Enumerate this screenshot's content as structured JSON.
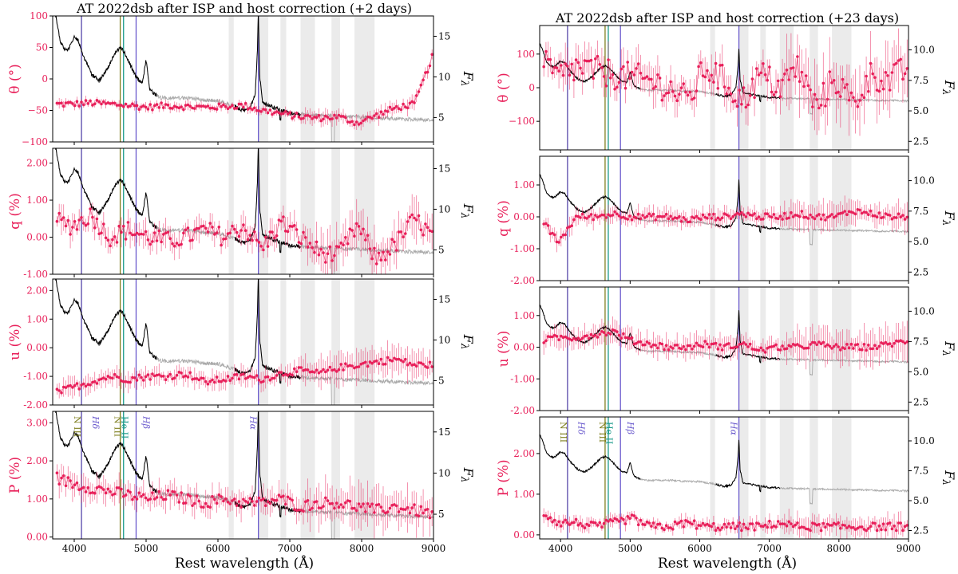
{
  "chart_data": {
    "type": "line",
    "x_label": "Rest wavelength (Å)",
    "x_range": [
      3700,
      9000
    ],
    "x_ticks": [
      4000,
      5000,
      6000,
      7000,
      8000,
      9000
    ],
    "right_axis_label": "F_λ",
    "right_axis_symbol": "F",
    "right_axis_subscript": "λ",
    "colors": {
      "polarization": "#e8205a",
      "flux": "#000000",
      "flux_uncertain": "#aaaaaa",
      "band": "#ebebeb"
    },
    "shaded_bands": [
      [
        6150,
        6220
      ],
      [
        6560,
        6700
      ],
      [
        6870,
        6950
      ],
      [
        7150,
        7350
      ],
      [
        7580,
        7700
      ],
      [
        7900,
        8180
      ]
    ],
    "shaded_bands_late": [
      [
        6150,
        6220
      ],
      [
        6560,
        6700
      ],
      [
        6870,
        6950
      ],
      [
        7150,
        7350
      ],
      [
        7580,
        7700
      ],
      [
        7900,
        8180
      ]
    ],
    "lines": [
      {
        "name": "N III",
        "wavelength": 4100,
        "color": "#808020"
      },
      {
        "name": "Hδ",
        "wavelength": 4101,
        "color": "#6a5acd"
      },
      {
        "name": "N III",
        "wavelength": 4640,
        "color": "#808020"
      },
      {
        "name": "He II",
        "wavelength": 4686,
        "color": "#1a9a8a"
      },
      {
        "name": "Hβ",
        "wavelength": 4861,
        "color": "#6a5acd"
      },
      {
        "name": "Hα",
        "wavelength": 6563,
        "color": "#6a5acd"
      }
    ],
    "line_labels": [
      {
        "text": "N III",
        "wavelength": 4000,
        "color": "#808020"
      },
      {
        "text": "Hδ",
        "wavelength": 4255,
        "color": "#6a5acd"
      },
      {
        "text": "N III",
        "wavelength": 4560,
        "color": "#808020"
      },
      {
        "text": "He II",
        "wavelength": 4660,
        "color": "#1a9a8a"
      },
      {
        "text": "Hβ",
        "wavelength": 4960,
        "color": "#6a5acd"
      },
      {
        "text": "Hα",
        "wavelength": 6450,
        "color": "#6a5acd"
      }
    ],
    "flux_profile": {
      "x": [
        3700,
        3750,
        3800,
        3850,
        3900,
        3950,
        4000,
        4050,
        4100,
        4150,
        4200,
        4250,
        4300,
        4350,
        4400,
        4450,
        4500,
        4550,
        4600,
        4650,
        4700,
        4750,
        4800,
        4850,
        4900,
        4950,
        5000,
        5050,
        5100,
        5150,
        5200,
        5400,
        5600,
        5800,
        6000,
        6200,
        6350,
        6450,
        6520,
        6550,
        6563,
        6580,
        6620,
        6700,
        6800,
        6900,
        7000,
        7200,
        7400,
        7600,
        7800,
        8000,
        8200,
        8400,
        8600,
        8800,
        9000
      ],
      "shape": [
        1.0,
        0.85,
        0.68,
        0.62,
        0.6,
        0.64,
        0.7,
        0.68,
        0.6,
        0.52,
        0.46,
        0.4,
        0.38,
        0.36,
        0.4,
        0.44,
        0.5,
        0.56,
        0.6,
        0.62,
        0.58,
        0.52,
        0.46,
        0.4,
        0.36,
        0.34,
        0.52,
        0.3,
        0.26,
        0.24,
        0.22,
        0.22,
        0.22,
        0.2,
        0.2,
        0.16,
        0.12,
        0.14,
        0.26,
        0.6,
        0.92,
        0.4,
        0.18,
        0.16,
        0.14,
        0.12,
        0.1,
        0.09,
        0.08,
        0.08,
        0.07,
        0.07,
        0.06,
        0.06,
        0.05,
        0.05,
        0.04
      ],
      "solid_until": 5150,
      "solid_from": 6230,
      "solid_to": 7150
    },
    "panels": [
      {
        "id": "early",
        "title": "AT 2022dsb after ISP and host correction (+2 days)",
        "flux_range": [
          2.0,
          17.5
        ],
        "flux_scale": 15.5,
        "flux_base": 4.0,
        "right_ticks": [
          5,
          10,
          15
        ],
        "subplots": [
          {
            "ylabel": "θ (°)",
            "ylim": [
              -100,
              100
            ],
            "yticks": [
              -100,
              -50,
              0,
              50,
              100
            ],
            "ytick_labels": [
              "−100",
              "−50",
              "0",
              "50",
              "100"
            ],
            "base": [
              -40,
              -40,
              -38,
              -40,
              -42,
              -45,
              -42,
              -44,
              -45,
              -44,
              -42,
              -50,
              -55,
              -60,
              -62,
              -60,
              -70,
              -58,
              -46,
              -40,
              40
            ],
            "noise": 5,
            "err": 5
          },
          {
            "ylabel": "q (%)",
            "ylim": [
              -1,
              2.4
            ],
            "yticks": [
              -1,
              0,
              1,
              2
            ],
            "ytick_labels": [
              "-1.00",
              "0.00",
              "1.00",
              "2.00"
            ],
            "base": [
              0.5,
              0.3,
              0.6,
              0.0,
              0.2,
              0.0,
              -0.1,
              0.0,
              0.2,
              0.0,
              0.3,
              -0.3,
              0.4,
              0.0,
              -0.4,
              -0.5,
              0.3,
              -0.6,
              -0.2,
              0.5,
              0.0
            ],
            "noise": 0.25,
            "err": 0.25
          },
          {
            "ylabel": "u (%)",
            "ylim": [
              -2,
              2.4
            ],
            "yticks": [
              -2,
              -1,
              0,
              1,
              2
            ],
            "ytick_labels": [
              "-2.00",
              "-1.00",
              "0.00",
              "1.00",
              "2.00"
            ],
            "base": [
              -1.6,
              -1.4,
              -1.2,
              -1.0,
              -1.1,
              -1.0,
              -1.0,
              -0.9,
              -1.2,
              -1.1,
              -1.0,
              -1.1,
              -0.9,
              -0.8,
              -0.9,
              -0.7,
              -0.6,
              -0.5,
              -0.4,
              -0.6,
              -0.6
            ],
            "noise": 0.12,
            "err": 0.25
          },
          {
            "ylabel": "P (%)",
            "ylim": [
              -0.05,
              3.3
            ],
            "yticks": [
              0,
              1,
              2,
              3
            ],
            "ytick_labels": [
              "0.00",
              "1.00",
              "2.00",
              "3.00"
            ],
            "base": [
              1.6,
              1.4,
              1.3,
              1.2,
              1.1,
              1.0,
              1.1,
              1.0,
              0.9,
              1.0,
              0.9,
              0.9,
              1.0,
              0.8,
              0.9,
              0.9,
              0.8,
              0.7,
              0.8,
              0.7,
              0.6
            ],
            "noise": 0.15,
            "err": 0.25
          }
        ]
      },
      {
        "id": "late",
        "title": "AT 2022dsb after ISP and host correction (+23 days)",
        "flux_range": [
          1.8,
          12.0
        ],
        "flux_scale": 5.0,
        "flux_base": 5.6,
        "right_ticks": [
          2.5,
          5.0,
          7.5,
          10.0
        ],
        "subplots": [
          {
            "ylabel": "θ (°)",
            "ylim": [
              -185,
              185
            ],
            "yticks": [
              -100,
              0,
              100
            ],
            "ytick_labels": [
              "−100",
              "0",
              "100"
            ],
            "base": [
              80,
              30,
              60,
              50,
              40,
              30,
              20,
              0,
              -40,
              60,
              20,
              -40,
              40,
              0,
              60,
              -60,
              30,
              -50,
              40,
              20,
              60
            ],
            "noise": 45,
            "err": 40
          },
          {
            "ylabel": "q (%)",
            "ylim": [
              -2,
              1.9
            ],
            "yticks": [
              -2,
              -1,
              0,
              1
            ],
            "ytick_labels": [
              "-2.00",
              "-1.00",
              "0.00",
              "1.00"
            ],
            "base": [
              0.0,
              -0.8,
              0.0,
              0.0,
              0.1,
              0.0,
              0.0,
              0.0,
              -0.1,
              0.0,
              0.0,
              0.1,
              0.0,
              0.0,
              0.1,
              0.0,
              0.0,
              0.2,
              0.1,
              0.0,
              0.0
            ],
            "noise": 0.1,
            "err": 0.2
          },
          {
            "ylabel": "u (%)",
            "ylim": [
              -2,
              1.9
            ],
            "yticks": [
              -2,
              -1,
              0,
              1
            ],
            "ytick_labels": [
              "-2.00",
              "-1.00",
              "0.00",
              "1.00"
            ],
            "base": [
              0.2,
              0.3,
              0.3,
              0.4,
              0.5,
              0.2,
              0.1,
              0.0,
              0.0,
              0.1,
              0.0,
              0.1,
              -0.1,
              0.0,
              0.0,
              0.1,
              0.0,
              0.0,
              0.0,
              0.1,
              0.2
            ],
            "noise": 0.1,
            "err": 0.25
          },
          {
            "ylabel": "P (%)",
            "ylim": [
              -0.1,
              2.9
            ],
            "yticks": [
              0,
              1,
              2
            ],
            "ytick_labels": [
              "0.00",
              "1.00",
              "2.00"
            ],
            "base": [
              0.6,
              0.3,
              0.3,
              0.2,
              0.3,
              0.4,
              0.2,
              0.2,
              0.3,
              0.2,
              0.2,
              0.2,
              0.2,
              0.3,
              0.2,
              0.2,
              0.2,
              0.2,
              0.2,
              0.2,
              0.2
            ],
            "noise": 0.1,
            "err": 0.12
          }
        ]
      }
    ]
  }
}
